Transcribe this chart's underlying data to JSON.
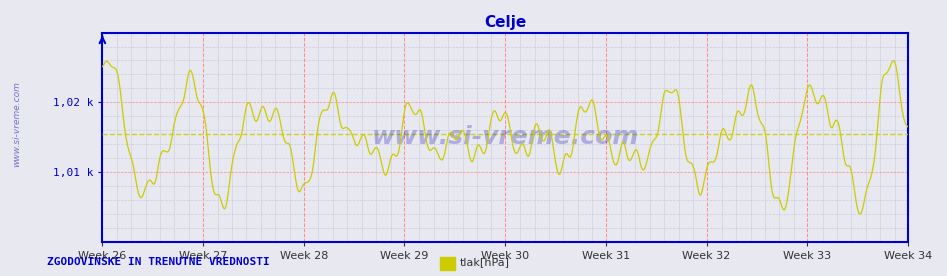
{
  "title": "Celje",
  "title_color": "#0000cc",
  "xlabel": "",
  "ylabel": "",
  "background_color": "#e8e8f0",
  "plot_bg_color": "#e8e8f0",
  "line_color": "#cccc00",
  "line_width": 1.0,
  "avg_line_color": "#cccc00",
  "avg_line_style": "--",
  "grid_color_major": "#ff8888",
  "grid_color_minor": "#ccccdd",
  "axis_color": "#0000cc",
  "ytick_labels": [
    "1,01 k",
    "1,02 k"
  ],
  "ytick_values": [
    1010,
    1020
  ],
  "ymin": 1000,
  "ymax": 1030,
  "week_labels": [
    "Week 26",
    "Week 27",
    "Week 28",
    "Week 29",
    "Week 30",
    "Week 31",
    "Week 32",
    "Week 33",
    "Week 34"
  ],
  "watermark": "www.si-vreme.com",
  "watermark_color": "#0000aa",
  "watermark_alpha": 0.25,
  "legend_label": "tlak[hPa]",
  "legend_color": "#cccc00",
  "bottom_label": "ZGODOVINSKE IN TRENUTNE VREDNOSTI",
  "bottom_label_color": "#0000cc",
  "n_points": 672,
  "avg_value": 1015.5
}
